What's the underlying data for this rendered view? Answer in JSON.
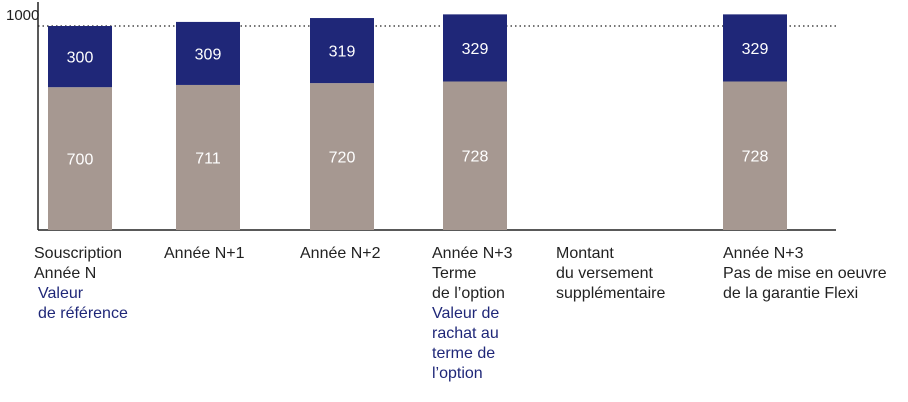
{
  "chart_data": {
    "type": "bar",
    "stacked": true,
    "title": "",
    "xlabel": "",
    "ylabel": "",
    "ylim": [
      0,
      1090
    ],
    "y_tick_labels": [
      "1000"
    ],
    "reference_line": {
      "value": 1000,
      "style": "dotted"
    },
    "grid": false,
    "legend": "none",
    "categories": [
      "Souscription Année N",
      "Année N+1",
      "Année N+2",
      "Année N+3 Terme de l'option",
      "Montant du versement supplémentaire",
      "Année N+3 Pas de mise en oeuvre de la garantie Flexi"
    ],
    "series": [
      {
        "values": [
          700,
          711,
          720,
          728,
          null,
          728
        ],
        "labels": [
          "700",
          "711",
          "720",
          "728",
          "",
          "728"
        ]
      },
      {
        "values": [
          300,
          309,
          319,
          329,
          null,
          329
        ],
        "labels": [
          "300",
          "309",
          "319",
          "329",
          "",
          "329"
        ]
      }
    ],
    "colors": {
      "lower": "#a69891",
      "upper": "#1f2778",
      "axis": "#222222",
      "label_on_lower": "#ffffff",
      "label_on_upper": "#ffffff"
    },
    "category_label_lines": [
      {
        "lines": [
          "Souscription",
          "Année N"
        ],
        "accent_lines": [
          "Valeur",
          "de référence"
        ]
      },
      {
        "lines": [
          "Année N+1"
        ],
        "accent_lines": []
      },
      {
        "lines": [
          "Année N+2"
        ],
        "accent_lines": []
      },
      {
        "lines": [
          "Année N+3",
          "Terme",
          "de l’option"
        ],
        "accent_lines": [
          "Valeur de",
          "rachat au",
          "terme de",
          "l’option"
        ]
      },
      {
        "lines": [
          "Montant",
          "du versement",
          "supplémentaire"
        ],
        "accent_lines": []
      },
      {
        "lines": [
          "Année N+3",
          "Pas de mise en oeuvre",
          "de la garantie Flexi"
        ],
        "accent_lines": []
      }
    ]
  }
}
